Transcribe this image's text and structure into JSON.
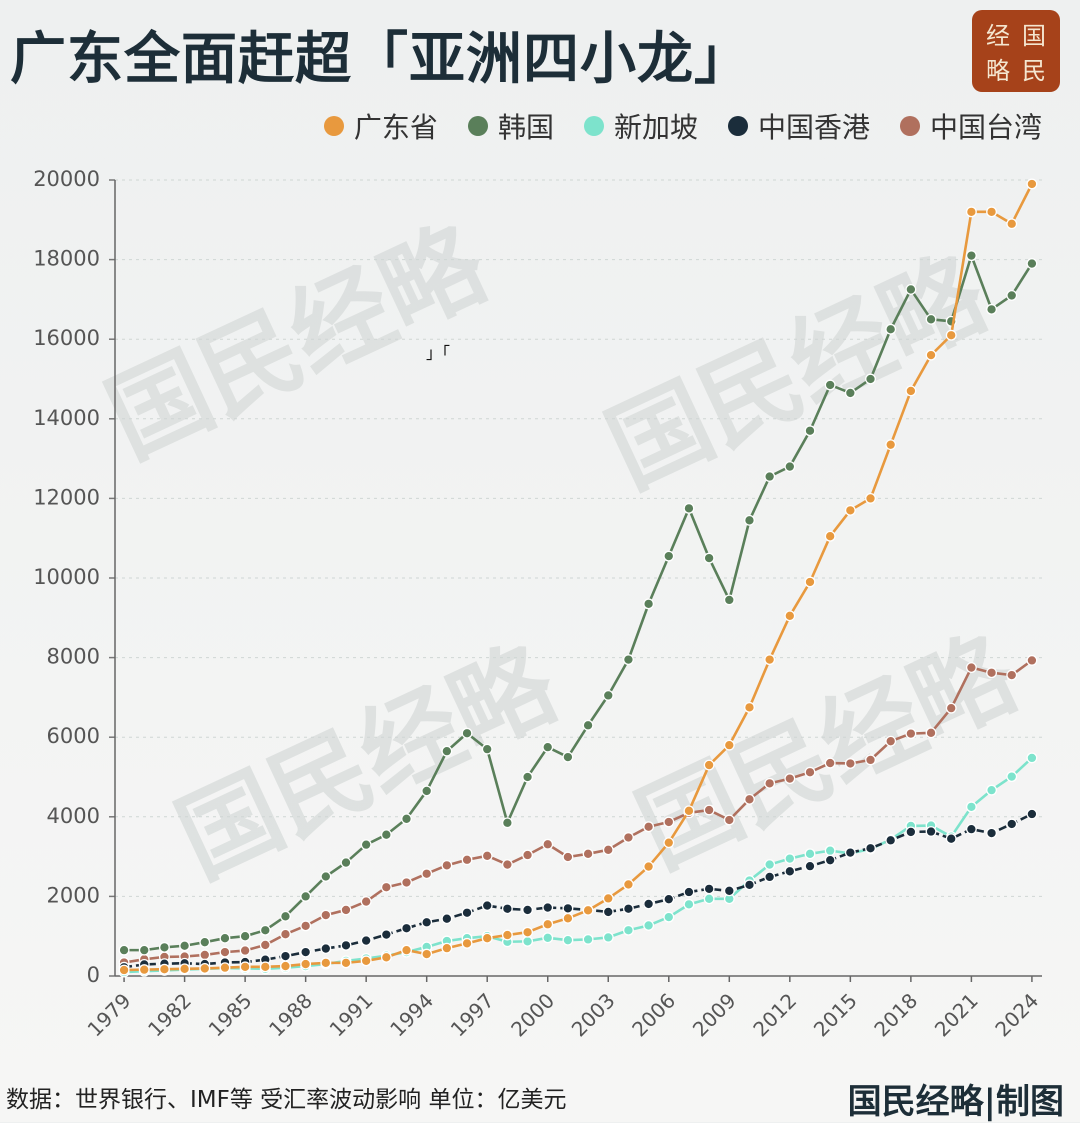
{
  "chart_data": {
    "type": "line",
    "title": "广东全面赶超「亚洲四小龙」",
    "logo": [
      "经",
      "国",
      "略",
      "民"
    ],
    "annotation": "」「",
    "watermark": "国民经略",
    "source": "数据：世界银行、IMF等 受汇率波动影响 单位：亿美元",
    "credit": "国民经略|制图",
    "x": [
      1979,
      1980,
      1981,
      1982,
      1983,
      1984,
      1985,
      1986,
      1987,
      1988,
      1989,
      1990,
      1991,
      1992,
      1993,
      1994,
      1995,
      1996,
      1997,
      1998,
      1999,
      2000,
      2001,
      2002,
      2003,
      2004,
      2005,
      2006,
      2007,
      2008,
      2009,
      2010,
      2011,
      2012,
      2013,
      2014,
      2015,
      2016,
      2017,
      2018,
      2019,
      2020,
      2021,
      2022,
      2023,
      2024
    ],
    "xlim": [
      1978.55,
      2024.5
    ],
    "xticks": [
      1979,
      1982,
      1985,
      1988,
      1991,
      1994,
      1997,
      2000,
      2003,
      2006,
      2009,
      2012,
      2015,
      2018,
      2021,
      2024
    ],
    "ylim": [
      0,
      20000
    ],
    "yticks": [
      0,
      2000,
      4000,
      6000,
      8000,
      10000,
      12000,
      14000,
      16000,
      18000,
      20000
    ],
    "grid": true,
    "legend": "top-right",
    "series": [
      {
        "name": "广东省",
        "color": "#e8993e",
        "values": [
          150,
          160,
          170,
          180,
          190,
          210,
          230,
          230,
          250,
          300,
          330,
          330,
          380,
          470,
          650,
          550,
          700,
          820,
          950,
          1030,
          1100,
          1300,
          1450,
          1650,
          1950,
          2300,
          2750,
          3350,
          4150,
          5300,
          5800,
          6750,
          7950,
          9050,
          9900,
          11050,
          11700,
          12000,
          13350,
          14700,
          15600,
          16100,
          19200,
          19200,
          18900,
          19900
        ]
      },
      {
        "name": "韩国",
        "color": "#5a7f5a",
        "values": [
          650,
          650,
          720,
          760,
          850,
          950,
          1000,
          1150,
          1500,
          2000,
          2500,
          2850,
          3300,
          3550,
          3950,
          4650,
          5650,
          6100,
          5700,
          3850,
          5000,
          5750,
          5500,
          6300,
          7050,
          7950,
          9350,
          10550,
          11750,
          10500,
          9450,
          11450,
          12550,
          12800,
          13700,
          14850,
          14650,
          15000,
          16250,
          17250,
          16500,
          16450,
          18100,
          16750,
          17100,
          17900
        ]
      },
      {
        "name": "新加坡",
        "color": "#7de3cc",
        "values": [
          100,
          120,
          140,
          160,
          180,
          200,
          190,
          180,
          210,
          250,
          300,
          380,
          440,
          510,
          600,
          730,
          880,
          950,
          1000,
          860,
          870,
          960,
          900,
          920,
          970,
          1150,
          1270,
          1480,
          1800,
          1940,
          1940,
          2400,
          2800,
          2950,
          3070,
          3150,
          3080,
          3190,
          3430,
          3770,
          3780,
          3500,
          4250,
          4670,
          5010,
          5480
        ]
      },
      {
        "name": "中国香港",
        "color": "#1b2d3b",
        "line_style": "dashed",
        "values": [
          220,
          290,
          310,
          320,
          300,
          340,
          350,
          410,
          500,
          600,
          690,
          770,
          890,
          1040,
          1200,
          1350,
          1440,
          1590,
          1770,
          1690,
          1660,
          1720,
          1700,
          1660,
          1610,
          1690,
          1810,
          1930,
          2110,
          2190,
          2140,
          2290,
          2490,
          2630,
          2760,
          2910,
          3100,
          3210,
          3410,
          3620,
          3630,
          3450,
          3690,
          3590,
          3820,
          4070
        ]
      },
      {
        "name": "中国台湾",
        "color": "#b0705e",
        "values": [
          340,
          420,
          480,
          490,
          530,
          600,
          640,
          780,
          1050,
          1260,
          1530,
          1660,
          1870,
          2230,
          2350,
          2570,
          2780,
          2920,
          3020,
          2800,
          3040,
          3310,
          2990,
          3070,
          3170,
          3480,
          3750,
          3870,
          4100,
          4170,
          3920,
          4440,
          4840,
          4960,
          5120,
          5350,
          5340,
          5430,
          5900,
          6090,
          6110,
          6730,
          7750,
          7620,
          7560,
          7930
        ]
      }
    ]
  }
}
